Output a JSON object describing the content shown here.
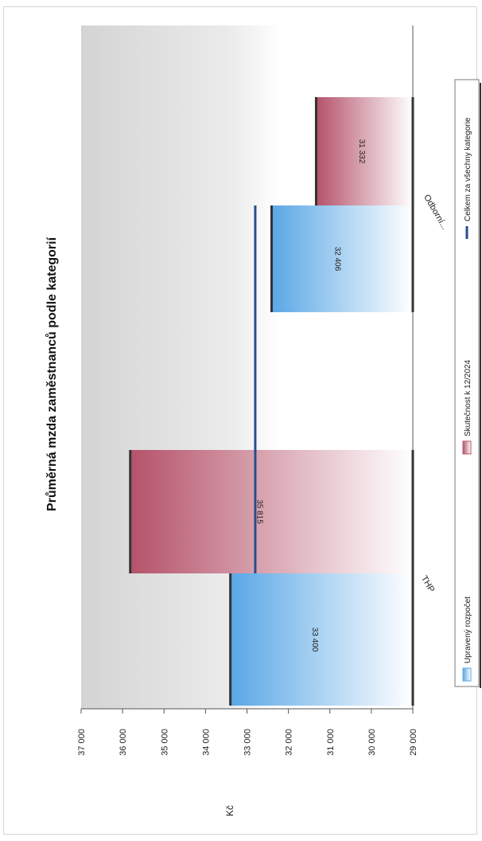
{
  "chart_data": {
    "type": "bar",
    "title": "Průměrná mzda zaměstnanců podle kategorií",
    "ylabel": "Kč",
    "xlabel": "",
    "ylim": [
      29000,
      37000
    ],
    "yticks": [
      "29 000",
      "30 000",
      "31 000",
      "32 000",
      "33 000",
      "34 000",
      "35 000",
      "36 000",
      "37 000"
    ],
    "yticks_values": [
      29000,
      30000,
      31000,
      32000,
      33000,
      34000,
      35000,
      36000,
      37000
    ],
    "categories": [
      "THP",
      "Odborní..."
    ],
    "series": [
      {
        "name": "Upravený rozpočet",
        "values": [
          33400,
          32406
        ],
        "labels": [
          "33 400",
          "32 406"
        ],
        "color": "#5aa7e6"
      },
      {
        "name": "Skutečnost k 12/2024",
        "values": [
          35815,
          31332
        ],
        "labels": [
          "35 815",
          "31 332"
        ],
        "color": "#b5526a"
      }
    ],
    "reference_line": {
      "name": "Celkem za všechny kategorie",
      "value": 32800,
      "color": "#2b4c8c"
    },
    "legend_position": "bottom",
    "orientation": "rotated-90",
    "grid": false
  }
}
